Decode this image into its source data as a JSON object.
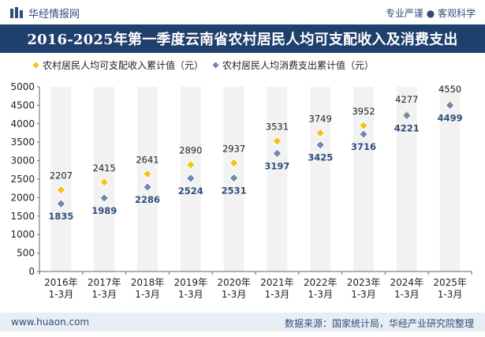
{
  "header": {
    "brand_name": "华经情报网",
    "tagline": "专业严谨 ● 客观科学"
  },
  "title": "2016-2025年第一季度云南省农村居民人均可支配收入及消费支出",
  "colors": {
    "title_bg": "#1f3f6d",
    "income": "#f5c21b",
    "expense": "#7089b0",
    "column_bg": "#f2f2f2",
    "label_text": "#222222",
    "expense_label": "#30507a"
  },
  "chart_data": {
    "type": "line",
    "categories": [
      "2016年\n1-3月",
      "2017年\n1-3月",
      "2018年\n1-3月",
      "2019年\n1-3月",
      "2020年\n1-3月",
      "2021年\n1-3月",
      "2022年\n1-3月",
      "2023年\n1-3月",
      "2024年\n1-3月",
      "2025年\n1-3月"
    ],
    "series": [
      {
        "name": "农村居民人均可支配收入累计值（元）",
        "values": [
          2207,
          2415,
          2641,
          2890,
          2937,
          3531,
          3749,
          3952,
          4277,
          4550
        ]
      },
      {
        "name": "农村居民人均消费支出累计值（元）",
        "values": [
          1835,
          1989,
          2286,
          2524,
          2531,
          3197,
          3425,
          3716,
          4221,
          4499
        ]
      }
    ],
    "ylim": [
      0,
      5000
    ],
    "yticks": [
      0,
      500,
      1000,
      1500,
      2000,
      2500,
      3000,
      3500,
      4000,
      4500,
      5000
    ],
    "legend_position": "top-left",
    "marker": "diamond",
    "grid": false
  },
  "footer": {
    "url": "www.huaon.com",
    "source": "数据来源：国家统计局，华经产业研究院整理"
  }
}
